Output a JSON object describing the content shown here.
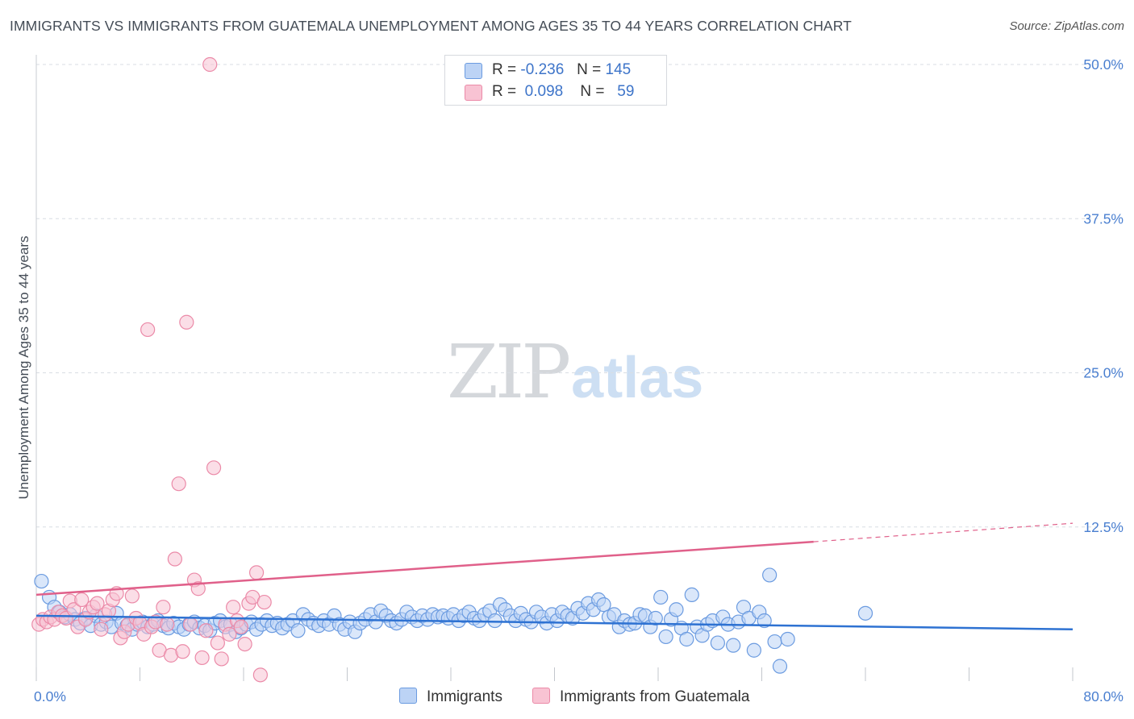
{
  "header": {
    "title": "IMMIGRANTS VS IMMIGRANTS FROM GUATEMALA UNEMPLOYMENT AMONG AGES 35 TO 44 YEARS CORRELATION CHART",
    "source": "Source: ZipAtlas.com"
  },
  "legend": {
    "r_label": "R =",
    "n_label": "N =",
    "series": [
      {
        "r": "-0.236",
        "n": "145"
      },
      {
        "r": "0.098",
        "n": "59"
      }
    ]
  },
  "bottom_legend": [
    "Immigrants",
    "Immigrants from Guatemala"
  ],
  "watermark": {
    "zip": "ZIP",
    "atlas": "atlas"
  },
  "colors": {
    "blue_fill": "#bcd3f5",
    "blue_stroke": "#6b9be0",
    "blue_line": "#2e72d2",
    "pink_fill": "#f8c3d3",
    "pink_stroke": "#eb8aa8",
    "pink_line": "#e0608a",
    "grid": "#d8dde3",
    "tick_text": "#4a7fd0"
  },
  "chart_data": {
    "type": "scatter",
    "title": "IMMIGRANTS VS IMMIGRANTS FROM GUATEMALA UNEMPLOYMENT AMONG AGES 35 TO 44 YEARS CORRELATION CHART",
    "xlabel": "",
    "ylabel": "Unemployment Among Ages 35 to 44 years",
    "xlim": [
      0,
      80
    ],
    "ylim": [
      0,
      50
    ],
    "x_tick_labels": [
      {
        "value": 0,
        "label": "0.0%"
      },
      {
        "value": 80,
        "label": "80.0%"
      }
    ],
    "y_ticks": [
      {
        "value": 12.5,
        "label": "12.5%"
      },
      {
        "value": 25,
        "label": "25.0%"
      },
      {
        "value": 37.5,
        "label": "37.5%"
      },
      {
        "value": 50,
        "label": "50.0%"
      }
    ],
    "x_minor_ticks": [
      0,
      8,
      16,
      24,
      32,
      40,
      48,
      56,
      64,
      72,
      80
    ],
    "grid": "horizontal dashed",
    "series": [
      {
        "name": "Immigrants",
        "color": "#6b9be0",
        "trend": {
          "x": [
            0,
            80
          ],
          "y": [
            5.3,
            4.2
          ]
        },
        "points": [
          [
            0.4,
            8.1
          ],
          [
            1.0,
            6.8
          ],
          [
            1.4,
            6.0
          ],
          [
            1.8,
            5.6
          ],
          [
            2.2,
            5.2
          ],
          [
            2.6,
            5.4
          ],
          [
            3.0,
            5.0
          ],
          [
            3.4,
            4.7
          ],
          [
            3.8,
            5.1
          ],
          [
            4.2,
            4.5
          ],
          [
            4.6,
            5.3
          ],
          [
            5.0,
            4.6
          ],
          [
            5.4,
            4.8
          ],
          [
            5.8,
            4.4
          ],
          [
            6.2,
            5.5
          ],
          [
            6.6,
            4.7
          ],
          [
            7.0,
            4.5
          ],
          [
            7.4,
            4.2
          ],
          [
            7.8,
            4.6
          ],
          [
            8.2,
            4.8
          ],
          [
            8.6,
            4.4
          ],
          [
            9.0,
            4.6
          ],
          [
            9.4,
            4.9
          ],
          [
            9.8,
            4.5
          ],
          [
            10.2,
            4.3
          ],
          [
            10.6,
            4.7
          ],
          [
            11.0,
            4.4
          ],
          [
            11.4,
            4.2
          ],
          [
            11.8,
            4.6
          ],
          [
            12.2,
            4.8
          ],
          [
            12.6,
            4.3
          ],
          [
            13.0,
            4.5
          ],
          [
            13.4,
            4.1
          ],
          [
            13.8,
            4.7
          ],
          [
            14.2,
            4.9
          ],
          [
            14.6,
            4.4
          ],
          [
            15.0,
            4.6
          ],
          [
            15.4,
            4.0
          ],
          [
            15.8,
            4.3
          ],
          [
            16.2,
            4.6
          ],
          [
            16.6,
            4.8
          ],
          [
            17.0,
            4.2
          ],
          [
            17.4,
            4.6
          ],
          [
            17.8,
            4.9
          ],
          [
            18.2,
            4.5
          ],
          [
            18.6,
            4.7
          ],
          [
            19.0,
            4.3
          ],
          [
            19.4,
            4.6
          ],
          [
            19.8,
            4.9
          ],
          [
            20.2,
            4.1
          ],
          [
            20.6,
            5.4
          ],
          [
            21.0,
            5.0
          ],
          [
            21.4,
            4.7
          ],
          [
            21.8,
            4.5
          ],
          [
            22.2,
            4.9
          ],
          [
            22.6,
            4.6
          ],
          [
            23.0,
            5.3
          ],
          [
            23.4,
            4.6
          ],
          [
            23.8,
            4.2
          ],
          [
            24.2,
            4.8
          ],
          [
            24.6,
            4.0
          ],
          [
            25.0,
            4.7
          ],
          [
            25.4,
            5.0
          ],
          [
            25.8,
            5.4
          ],
          [
            26.2,
            4.8
          ],
          [
            26.6,
            5.7
          ],
          [
            27.0,
            5.3
          ],
          [
            27.4,
            4.9
          ],
          [
            27.8,
            4.7
          ],
          [
            28.2,
            5.0
          ],
          [
            28.6,
            5.6
          ],
          [
            29.0,
            5.2
          ],
          [
            29.4,
            4.9
          ],
          [
            29.8,
            5.3
          ],
          [
            30.2,
            5.0
          ],
          [
            30.6,
            5.4
          ],
          [
            31.0,
            5.2
          ],
          [
            31.4,
            5.3
          ],
          [
            31.8,
            5.1
          ],
          [
            32.2,
            5.4
          ],
          [
            32.6,
            4.9
          ],
          [
            33.0,
            5.3
          ],
          [
            33.4,
            5.6
          ],
          [
            33.8,
            5.1
          ],
          [
            34.2,
            4.9
          ],
          [
            34.6,
            5.4
          ],
          [
            35.0,
            5.7
          ],
          [
            35.4,
            4.9
          ],
          [
            35.8,
            6.2
          ],
          [
            36.2,
            5.8
          ],
          [
            36.6,
            5.3
          ],
          [
            37.0,
            4.9
          ],
          [
            37.4,
            5.5
          ],
          [
            37.8,
            5.0
          ],
          [
            38.2,
            4.8
          ],
          [
            38.6,
            5.6
          ],
          [
            39.0,
            5.2
          ],
          [
            39.4,
            4.7
          ],
          [
            39.8,
            5.4
          ],
          [
            40.2,
            4.9
          ],
          [
            40.6,
            5.6
          ],
          [
            41.0,
            5.3
          ],
          [
            41.4,
            5.1
          ],
          [
            41.8,
            5.9
          ],
          [
            42.2,
            5.5
          ],
          [
            42.6,
            6.3
          ],
          [
            43.0,
            5.8
          ],
          [
            43.4,
            6.6
          ],
          [
            43.8,
            6.2
          ],
          [
            44.2,
            5.2
          ],
          [
            44.6,
            5.4
          ],
          [
            45.0,
            4.4
          ],
          [
            45.4,
            4.9
          ],
          [
            45.8,
            4.6
          ],
          [
            46.2,
            4.7
          ],
          [
            46.6,
            5.4
          ],
          [
            47.0,
            5.3
          ],
          [
            47.4,
            4.4
          ],
          [
            47.8,
            5.1
          ],
          [
            48.2,
            6.8
          ],
          [
            48.6,
            3.6
          ],
          [
            49.0,
            5.0
          ],
          [
            49.4,
            5.8
          ],
          [
            49.8,
            4.3
          ],
          [
            50.2,
            3.4
          ],
          [
            50.6,
            7.0
          ],
          [
            51.0,
            4.4
          ],
          [
            51.4,
            3.7
          ],
          [
            51.8,
            4.6
          ],
          [
            52.2,
            4.9
          ],
          [
            52.6,
            3.1
          ],
          [
            53.0,
            5.2
          ],
          [
            53.4,
            4.6
          ],
          [
            53.8,
            2.9
          ],
          [
            54.2,
            4.8
          ],
          [
            54.6,
            6.0
          ],
          [
            55.0,
            5.1
          ],
          [
            55.4,
            2.5
          ],
          [
            55.8,
            5.6
          ],
          [
            56.2,
            4.9
          ],
          [
            56.6,
            8.6
          ],
          [
            57.0,
            3.2
          ],
          [
            57.4,
            1.2
          ],
          [
            58.0,
            3.4
          ],
          [
            64.0,
            5.5
          ]
        ]
      },
      {
        "name": "Immigrants from Guatemala",
        "color": "#eb8aa8",
        "trend": {
          "x": [
            0,
            60
          ],
          "y": [
            7.0,
            11.3
          ]
        },
        "trend_dashed": {
          "x": [
            60,
            80
          ],
          "y": [
            11.3,
            12.8
          ]
        },
        "points": [
          [
            0.2,
            4.6
          ],
          [
            0.5,
            5.0
          ],
          [
            0.8,
            4.8
          ],
          [
            1.1,
            5.2
          ],
          [
            1.4,
            5.0
          ],
          [
            1.7,
            5.6
          ],
          [
            2.0,
            5.3
          ],
          [
            2.3,
            5.1
          ],
          [
            2.6,
            6.5
          ],
          [
            2.9,
            5.8
          ],
          [
            3.2,
            4.4
          ],
          [
            3.5,
            6.6
          ],
          [
            3.8,
            5.0
          ],
          [
            4.1,
            5.6
          ],
          [
            4.4,
            6.0
          ],
          [
            4.7,
            6.3
          ],
          [
            5.0,
            4.2
          ],
          [
            5.3,
            5.4
          ],
          [
            5.6,
            5.7
          ],
          [
            5.9,
            6.6
          ],
          [
            6.2,
            7.1
          ],
          [
            6.5,
            3.5
          ],
          [
            6.8,
            4.0
          ],
          [
            7.1,
            4.6
          ],
          [
            7.4,
            6.9
          ],
          [
            7.7,
            5.1
          ],
          [
            8.0,
            4.7
          ],
          [
            8.3,
            3.8
          ],
          [
            8.6,
            28.5
          ],
          [
            8.9,
            4.4
          ],
          [
            9.2,
            4.8
          ],
          [
            9.5,
            2.5
          ],
          [
            9.8,
            6.0
          ],
          [
            10.1,
            4.6
          ],
          [
            10.4,
            2.1
          ],
          [
            10.7,
            9.9
          ],
          [
            11.0,
            16.0
          ],
          [
            11.3,
            2.4
          ],
          [
            11.6,
            29.1
          ],
          [
            11.9,
            4.6
          ],
          [
            12.2,
            8.2
          ],
          [
            12.5,
            7.5
          ],
          [
            12.8,
            1.9
          ],
          [
            13.1,
            4.1
          ],
          [
            13.4,
            50.0
          ],
          [
            13.7,
            17.3
          ],
          [
            14.0,
            3.1
          ],
          [
            14.3,
            1.8
          ],
          [
            14.6,
            4.6
          ],
          [
            14.9,
            3.8
          ],
          [
            15.2,
            6.0
          ],
          [
            15.5,
            4.9
          ],
          [
            15.8,
            4.4
          ],
          [
            16.1,
            3.0
          ],
          [
            16.4,
            6.3
          ],
          [
            16.7,
            6.8
          ],
          [
            17.0,
            8.8
          ],
          [
            17.3,
            0.5
          ],
          [
            17.6,
            6.4
          ]
        ]
      }
    ]
  }
}
